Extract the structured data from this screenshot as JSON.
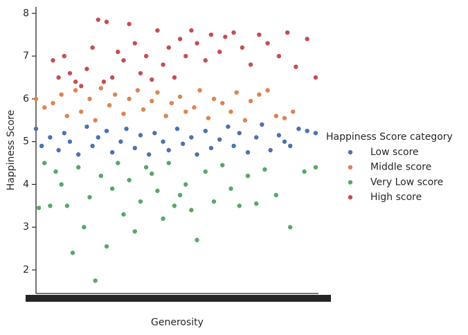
{
  "chart_data": {
    "type": "scatter",
    "xlabel": "Generosity",
    "ylabel": "Happiness Score",
    "legend_title": "Happiness Score category",
    "legend_position": "right",
    "xlim": [
      0,
      100
    ],
    "ylim": [
      1.45,
      8.15
    ],
    "yticks": [
      2,
      3,
      4,
      5,
      6,
      7,
      8
    ],
    "series": [
      {
        "name": "Low score",
        "color": "#4c72b0",
        "x": [
          0,
          2,
          5,
          8,
          10,
          12,
          15,
          18,
          20,
          22,
          25,
          27,
          30,
          32,
          35,
          37,
          40,
          42,
          45,
          47,
          50,
          52,
          55,
          57,
          60,
          62,
          65,
          68,
          70,
          72,
          75,
          78,
          80,
          83,
          86,
          88,
          90,
          93,
          96,
          99
        ],
        "values": [
          5.3,
          4.9,
          5.1,
          4.8,
          5.2,
          5.0,
          4.7,
          5.35,
          4.9,
          5.1,
          5.25,
          4.75,
          5.0,
          5.3,
          4.85,
          5.15,
          4.7,
          5.2,
          5.0,
          4.8,
          5.3,
          4.95,
          5.1,
          4.7,
          5.25,
          4.85,
          5.05,
          5.35,
          4.9,
          5.2,
          4.75,
          5.1,
          5.4,
          4.8,
          5.15,
          5.0,
          4.9,
          5.3,
          5.25,
          5.2
        ]
      },
      {
        "name": "Middle score",
        "color": "#dd8452",
        "x": [
          0,
          3,
          6,
          9,
          11,
          14,
          16,
          19,
          21,
          23,
          26,
          28,
          31,
          33,
          36,
          38,
          41,
          43,
          46,
          48,
          51,
          53,
          56,
          58,
          61,
          63,
          66,
          69,
          71,
          74,
          76,
          79,
          82,
          85,
          88,
          91
        ],
        "values": [
          6.0,
          5.8,
          5.9,
          6.1,
          5.6,
          6.2,
          5.7,
          6.0,
          5.5,
          6.25,
          5.85,
          6.1,
          5.65,
          6.0,
          6.2,
          5.75,
          5.95,
          6.15,
          5.6,
          5.9,
          6.05,
          5.7,
          5.8,
          6.2,
          5.55,
          6.0,
          5.9,
          5.7,
          6.15,
          5.5,
          5.95,
          6.1,
          6.2,
          5.6,
          5.55,
          5.7
        ]
      },
      {
        "name": "Very Low score",
        "color": "#55a868",
        "x": [
          1,
          3,
          5,
          7,
          9,
          11,
          13,
          15,
          17,
          19,
          21,
          23,
          25,
          27,
          29,
          31,
          33,
          35,
          37,
          39,
          41,
          43,
          45,
          47,
          49,
          51,
          53,
          55,
          57,
          60,
          63,
          66,
          69,
          72,
          75,
          78,
          81,
          85,
          90,
          95,
          99
        ],
        "values": [
          3.45,
          4.5,
          3.5,
          4.3,
          4.0,
          3.5,
          2.4,
          4.4,
          3.0,
          3.7,
          1.75,
          4.2,
          2.55,
          3.9,
          4.5,
          3.3,
          4.1,
          2.9,
          3.6,
          4.4,
          4.25,
          3.85,
          3.2,
          4.5,
          3.5,
          3.75,
          4.0,
          3.4,
          2.7,
          4.3,
          3.6,
          4.45,
          3.9,
          3.5,
          4.2,
          3.55,
          4.35,
          3.75,
          3.0,
          4.3,
          4.4
        ]
      },
      {
        "name": "High score",
        "color": "#c44e52",
        "x": [
          6,
          8,
          10,
          12,
          14,
          16,
          18,
          20,
          22,
          24,
          25,
          27,
          29,
          31,
          33,
          35,
          37,
          39,
          41,
          43,
          45,
          47,
          49,
          51,
          53,
          55,
          57,
          60,
          62,
          65,
          67,
          70,
          73,
          76,
          79,
          82,
          86,
          89,
          92,
          96,
          99
        ],
        "values": [
          6.9,
          6.5,
          7.0,
          6.6,
          6.4,
          6.3,
          6.7,
          7.2,
          7.85,
          6.4,
          7.8,
          6.5,
          7.1,
          6.9,
          7.75,
          7.3,
          6.6,
          7.0,
          6.45,
          7.6,
          6.8,
          7.2,
          6.5,
          7.4,
          7.0,
          7.6,
          7.3,
          6.9,
          7.5,
          7.1,
          7.45,
          7.55,
          7.2,
          6.8,
          7.5,
          7.3,
          7.0,
          7.55,
          6.75,
          7.4,
          6.5
        ]
      }
    ]
  }
}
